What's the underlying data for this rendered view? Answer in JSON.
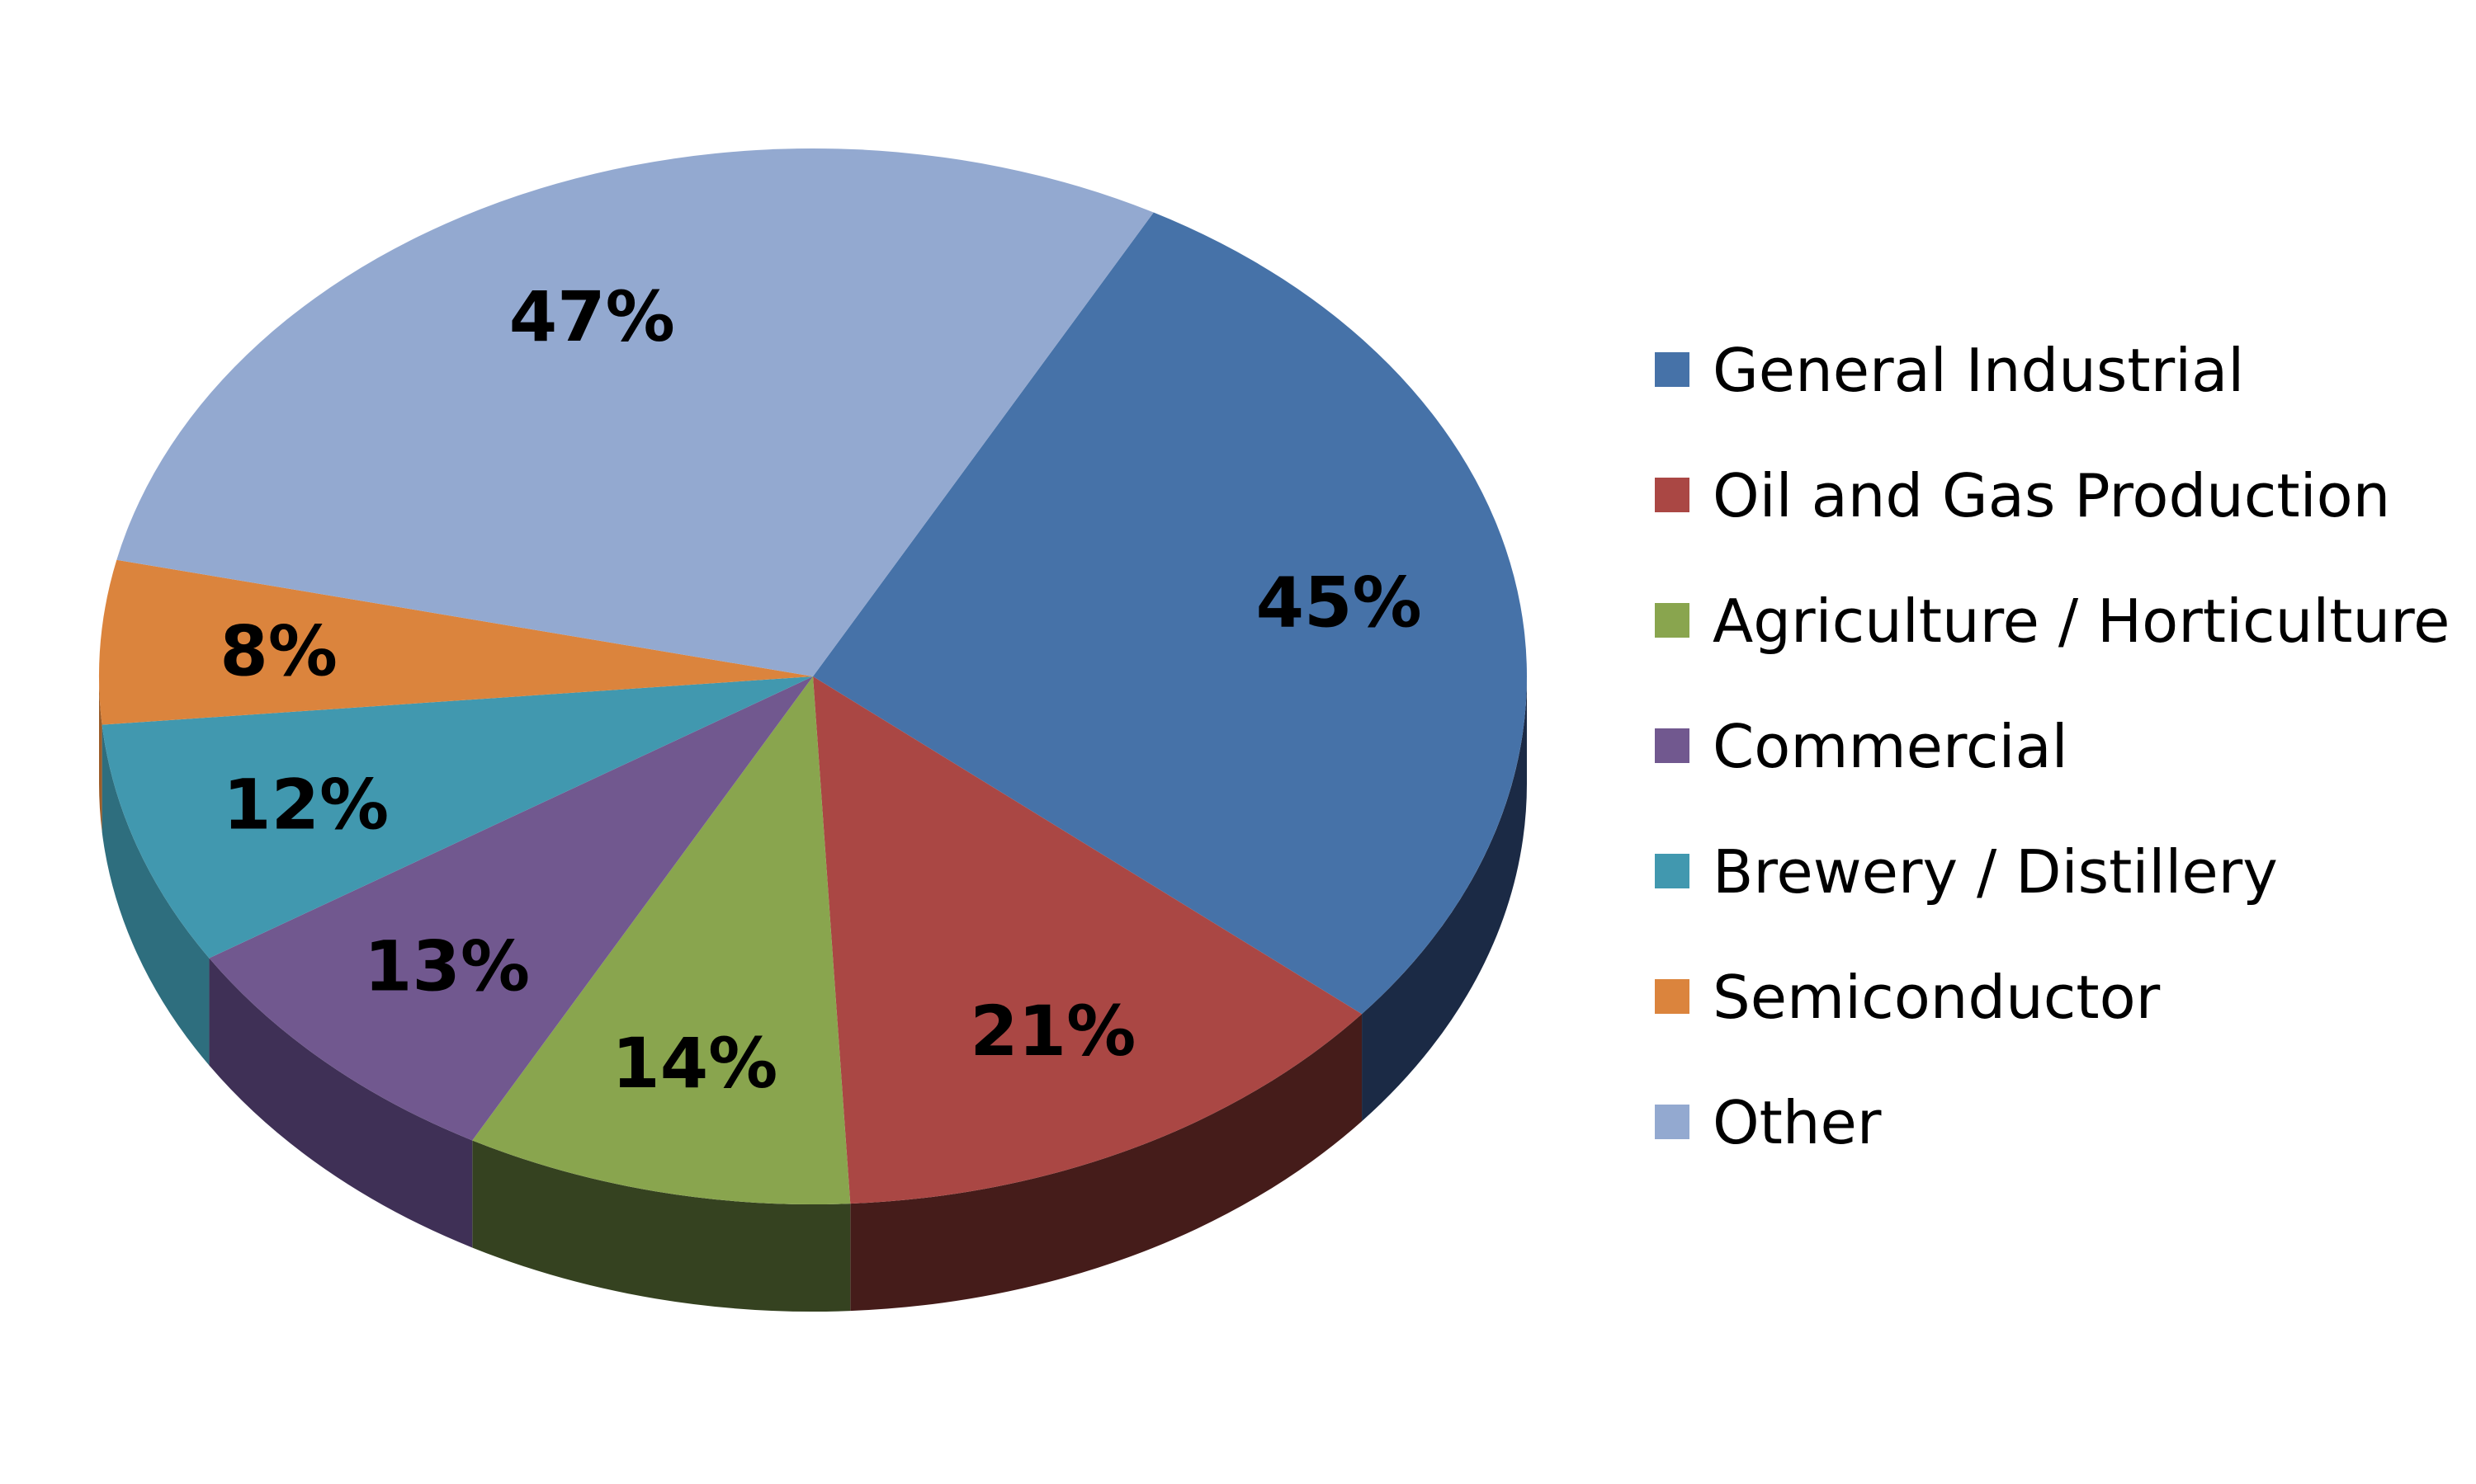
{
  "chart_data": {
    "type": "pie",
    "categories": [
      "General Industrial",
      "Oil and Gas Production",
      "Agriculture / Horticulture",
      "Commercial",
      "Brewery / Distillery",
      "Semiconductor",
      "Other"
    ],
    "values": [
      45,
      21,
      14,
      13,
      12,
      8,
      47
    ],
    "data_labels": [
      "45%",
      "21%",
      "14%",
      "13%",
      "12%",
      "8%",
      "47%"
    ],
    "colors": [
      "#4672A8",
      "#AA4744",
      "#89A54E",
      "#71588F",
      "#4198AF",
      "#DB843D",
      "#93A9D0"
    ],
    "side_colors": [
      "#1B2A45",
      "#451C1A",
      "#354220",
      "#3F3056",
      "#2E6E7E",
      "#9C5C28",
      "#5E6F8F"
    ],
    "title": "",
    "legend": "right",
    "style": "3d"
  }
}
